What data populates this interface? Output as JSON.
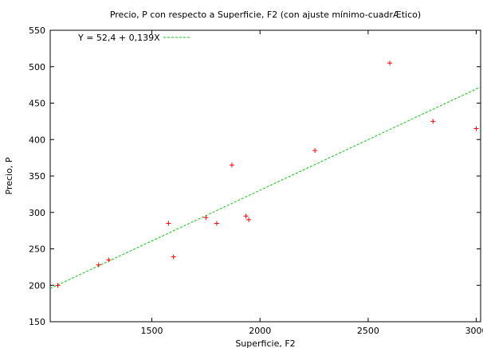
{
  "chart_data": {
    "type": "scatter",
    "title": "Precio, P con respecto a Superficie, F2 (con ajuste mínimo-cuadrÆtico)",
    "xlabel": "Superficie, F2",
    "ylabel": "Precio, P",
    "xlim": [
      1030,
      3020
    ],
    "ylim": [
      150,
      550
    ],
    "xticks": [
      1500,
      2000,
      2500,
      3000
    ],
    "yticks": [
      150,
      200,
      250,
      300,
      350,
      400,
      450,
      500,
      550
    ],
    "grid": false,
    "legend_position": "top-left",
    "series": [
      {
        "kind": "scatter",
        "marker": "plus",
        "color": "#ff0000",
        "points": [
          {
            "x": 1065,
            "y": 199.9
          },
          {
            "x": 1254,
            "y": 228
          },
          {
            "x": 1300,
            "y": 235
          },
          {
            "x": 1577,
            "y": 285
          },
          {
            "x": 1600,
            "y": 239
          },
          {
            "x": 1750,
            "y": 293
          },
          {
            "x": 1800,
            "y": 285
          },
          {
            "x": 1870,
            "y": 365
          },
          {
            "x": 1935,
            "y": 295
          },
          {
            "x": 1948,
            "y": 290
          },
          {
            "x": 2254,
            "y": 385
          },
          {
            "x": 2600,
            "y": 505
          },
          {
            "x": 2800,
            "y": 425
          },
          {
            "x": 3000,
            "y": 415
          }
        ]
      },
      {
        "kind": "line",
        "name": "Y = 52,4 + 0,139X",
        "style": "dashed",
        "color": "#00cc00",
        "intercept": 52.4,
        "slope": 0.139
      }
    ]
  }
}
